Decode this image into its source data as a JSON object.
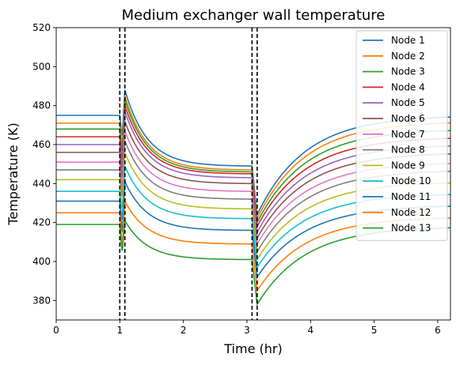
{
  "chart_data": {
    "type": "line",
    "title": "Medium exchanger wall temperature",
    "xlabel": "Time (hr)",
    "ylabel": "Temperature (K)",
    "xlim": [
      0,
      6.2
    ],
    "ylim": [
      370,
      520
    ],
    "xticks": [
      0,
      1,
      2,
      3,
      4,
      5,
      6
    ],
    "yticks": [
      380,
      400,
      420,
      440,
      460,
      480,
      500,
      520
    ],
    "grid": false,
    "legend_position": "upper right",
    "vlines": [
      1.0,
      1.08,
      3.08,
      3.16
    ],
    "vline_style": "dashed",
    "vline_color": "#000000",
    "series": [
      {
        "name": "Node 1",
        "color": "#1f77b4",
        "start": 475,
        "dip1": 463,
        "peak1": 488,
        "end1": 449,
        "dip2": 424,
        "end2": 475
      },
      {
        "name": "Node 2",
        "color": "#ff7f0e",
        "start": 471,
        "dip1": 458,
        "peak1": 485,
        "end1": 447,
        "dip2": 422,
        "end2": 472
      },
      {
        "name": "Node 3",
        "color": "#2ca02c",
        "start": 468,
        "dip1": 455,
        "peak1": 483,
        "end1": 446,
        "dip2": 420,
        "end2": 468
      },
      {
        "name": "Node 4",
        "color": "#d62728",
        "start": 464,
        "dip1": 450,
        "peak1": 480,
        "end1": 445,
        "dip2": 418,
        "end2": 464
      },
      {
        "name": "Node 5",
        "color": "#9467bd",
        "start": 460,
        "dip1": 446,
        "peak1": 477,
        "end1": 443,
        "dip2": 415,
        "end2": 460
      },
      {
        "name": "Node 6",
        "color": "#8c564b",
        "start": 456,
        "dip1": 441,
        "peak1": 472,
        "end1": 440,
        "dip2": 412,
        "end2": 456
      },
      {
        "name": "Node 7",
        "color": "#e377c2",
        "start": 451,
        "dip1": 436,
        "peak1": 467,
        "end1": 436,
        "dip2": 409,
        "end2": 451
      },
      {
        "name": "Node 8",
        "color": "#7f7f7f",
        "start": 447,
        "dip1": 431,
        "peak1": 462,
        "end1": 432,
        "dip2": 405,
        "end2": 447
      },
      {
        "name": "Node 9",
        "color": "#bcbd22",
        "start": 442,
        "dip1": 425,
        "peak1": 456,
        "end1": 427,
        "dip2": 401,
        "end2": 441
      },
      {
        "name": "Node 10",
        "color": "#17becf",
        "start": 436,
        "dip1": 419,
        "peak1": 449,
        "end1": 422,
        "dip2": 397,
        "end2": 435
      },
      {
        "name": "Node 11",
        "color": "#1f77b4",
        "start": 431,
        "dip1": 413,
        "peak1": 441,
        "end1": 416,
        "dip2": 392,
        "end2": 429
      },
      {
        "name": "Node 12",
        "color": "#ff7f0e",
        "start": 425,
        "dip1": 407,
        "peak1": 431,
        "end1": 409,
        "dip2": 385,
        "end2": 423
      },
      {
        "name": "Node 13",
        "color": "#2ca02c",
        "start": 419,
        "dip1": 404,
        "peak1": 421,
        "end1": 401,
        "dip2": 378,
        "end2": 418
      }
    ]
  }
}
